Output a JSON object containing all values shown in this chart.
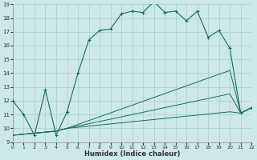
{
  "xlabel": "Humidex (Indice chaleur)",
  "bg_color": "#cce8e8",
  "grid_color": "#aacccc",
  "line_color": "#1a6b5a",
  "xlim": [
    0,
    22
  ],
  "ylim": [
    9,
    19
  ],
  "xticks": [
    0,
    1,
    2,
    3,
    4,
    5,
    6,
    7,
    8,
    9,
    10,
    11,
    12,
    13,
    14,
    15,
    16,
    17,
    18,
    19,
    20,
    21,
    22
  ],
  "yticks": [
    9,
    10,
    11,
    12,
    13,
    14,
    15,
    16,
    17,
    18,
    19
  ],
  "line1_x": [
    0,
    1,
    2,
    3,
    4,
    5,
    6,
    7,
    8,
    9,
    10,
    11,
    12,
    13,
    14,
    15,
    16,
    17,
    18,
    19,
    20,
    21,
    22
  ],
  "line1_y": [
    12.0,
    11.0,
    9.5,
    12.8,
    9.5,
    11.2,
    14.0,
    16.4,
    17.1,
    17.2,
    18.3,
    18.5,
    18.4,
    19.2,
    18.4,
    18.5,
    17.8,
    18.5,
    16.6,
    17.1,
    15.8,
    11.1,
    11.5
  ],
  "line2_x": [
    0,
    4,
    5,
    20,
    21,
    22
  ],
  "line2_y": [
    9.5,
    9.8,
    10.0,
    14.2,
    11.1,
    11.5
  ],
  "line3_x": [
    0,
    4,
    5,
    20,
    21,
    22
  ],
  "line3_y": [
    9.5,
    9.8,
    10.0,
    12.5,
    11.1,
    11.5
  ],
  "line4_x": [
    0,
    4,
    5,
    20,
    21,
    22
  ],
  "line4_y": [
    9.5,
    9.8,
    10.0,
    11.2,
    11.1,
    11.5
  ]
}
